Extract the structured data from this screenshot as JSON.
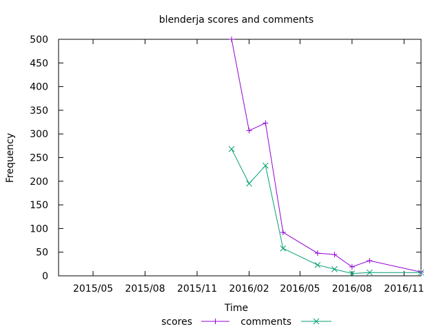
{
  "chart_data": {
    "type": "line",
    "title": "blenderja scores and comments",
    "xlabel": "Time",
    "ylabel": "Frequency",
    "xlim": [
      "2015-03-01",
      "2016-12-01"
    ],
    "ylim": [
      0,
      500
    ],
    "yticks": [
      0,
      50,
      100,
      150,
      200,
      250,
      300,
      350,
      400,
      450,
      500
    ],
    "xticks": [
      {
        "label": "2015/05",
        "date": "2015-05-01"
      },
      {
        "label": "2015/08",
        "date": "2015-08-01"
      },
      {
        "label": "2015/11",
        "date": "2015-11-01"
      },
      {
        "label": "2016/02",
        "date": "2016-02-01"
      },
      {
        "label": "2016/05",
        "date": "2016-05-01"
      },
      {
        "label": "2016/08",
        "date": "2016-08-01"
      },
      {
        "label": "2016/11",
        "date": "2016-11-01"
      }
    ],
    "grid": false,
    "legend_position": "bottom",
    "series": [
      {
        "name": "scores",
        "color": "#9400d3",
        "marker": "plus",
        "points": [
          {
            "x": "2016-01-01",
            "y": 500
          },
          {
            "x": "2016-02-01",
            "y": 307
          },
          {
            "x": "2016-03-01",
            "y": 323
          },
          {
            "x": "2016-04-01",
            "y": 92
          },
          {
            "x": "2016-06-01",
            "y": 48
          },
          {
            "x": "2016-07-01",
            "y": 45
          },
          {
            "x": "2016-08-01",
            "y": 19
          },
          {
            "x": "2016-09-01",
            "y": 32
          },
          {
            "x": "2016-12-01",
            "y": 8
          }
        ]
      },
      {
        "name": "comments",
        "color": "#009e73",
        "marker": "cross",
        "points": [
          {
            "x": "2016-01-01",
            "y": 268
          },
          {
            "x": "2016-02-01",
            "y": 195
          },
          {
            "x": "2016-03-01",
            "y": 233
          },
          {
            "x": "2016-04-01",
            "y": 58
          },
          {
            "x": "2016-06-01",
            "y": 23
          },
          {
            "x": "2016-07-01",
            "y": 14
          },
          {
            "x": "2016-08-01",
            "y": 5
          },
          {
            "x": "2016-09-01",
            "y": 7
          },
          {
            "x": "2016-12-01",
            "y": 7
          }
        ]
      }
    ]
  }
}
